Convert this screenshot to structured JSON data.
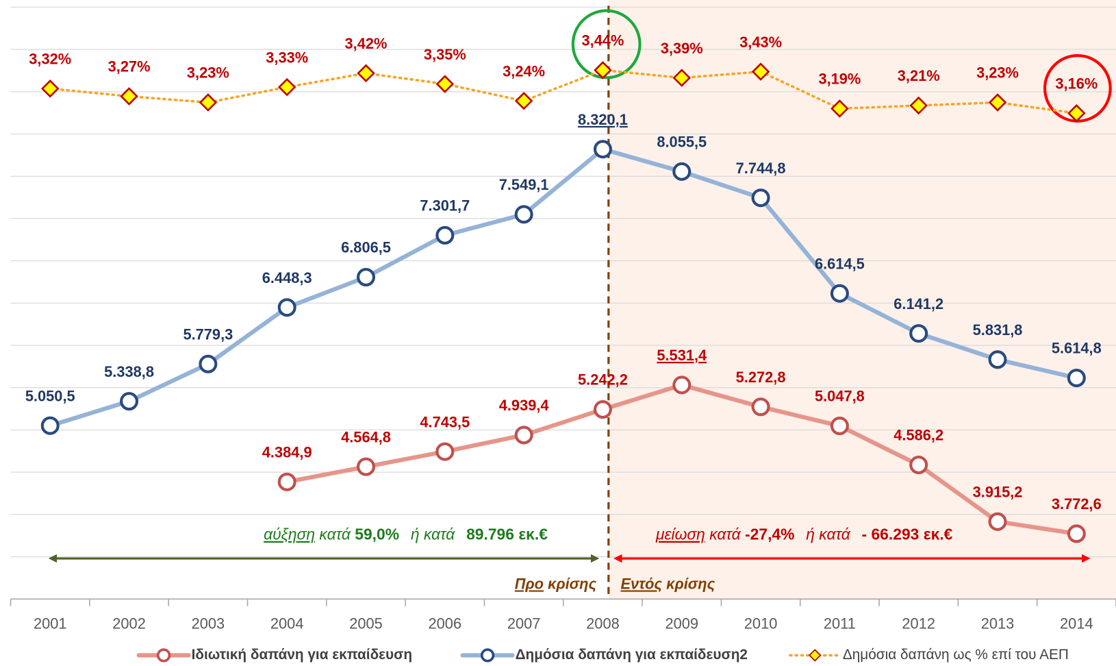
{
  "chart_data": {
    "type": "line",
    "categories": [
      "2001",
      "2002",
      "2003",
      "2004",
      "2005",
      "2006",
      "2007",
      "2008",
      "2009",
      "2010",
      "2011",
      "2012",
      "2013",
      "2014"
    ],
    "ylim": [
      3000,
      10000
    ],
    "yticks": [
      3000,
      3500,
      4000,
      4500,
      5000,
      5500,
      6000,
      6500,
      7000,
      7500,
      8000,
      8500,
      9000,
      9500,
      10000
    ],
    "y2lim": [
      0,
      3.85
    ],
    "grid": true,
    "series": [
      {
        "name": "Ιδιωτική δαπάνη για εκπαίδευση",
        "color": "#e6958a",
        "marker_color": "#c0504d",
        "label_color": "#c00000",
        "marker": "circle",
        "line_style": "solid",
        "values": [
          null,
          null,
          null,
          4384.9,
          4564.8,
          4743.5,
          4939.4,
          5242.2,
          5531.4,
          5272.8,
          5047.8,
          4586.2,
          3915.2,
          3772.6
        ],
        "value_labels": [
          null,
          null,
          null,
          "4.384,9",
          "4.564,8",
          "4.743,5",
          "4.939,4",
          "5.242,2",
          "5.531,4",
          "5.272,8",
          "5.047,8",
          "4.586,2",
          "3.915,2",
          "3.772,6"
        ]
      },
      {
        "name": "Δημόσια δαπάνη για εκπαίδευση2",
        "color": "#95b3d7",
        "marker_color": "#2a4a7f",
        "label_color": "#1f3864",
        "marker": "circle",
        "line_style": "solid",
        "values": [
          5050.5,
          5338.8,
          5779.3,
          6448.3,
          6806.5,
          7301.7,
          7549.1,
          8320.1,
          8055.5,
          7744.8,
          6614.5,
          6141.2,
          5831.8,
          5614.8
        ],
        "value_labels": [
          "5.050,5",
          "5.338,8",
          "5.779,3",
          "6.448,3",
          "6.806,5",
          "7.301,7",
          "7.549,1",
          "8.320,1",
          "8.055,5",
          "7.744,8",
          "6.614,5",
          "6.141,2",
          "5.831,8",
          "5.614,8"
        ]
      },
      {
        "name": "Δημόσια δαπάνη ως % επί του ΑΕΠ",
        "color": "#f5a623",
        "marker_color": "#c00000",
        "marker_fill": "#ffff00",
        "label_color": "#c00000",
        "marker": "diamond",
        "line_style": "dotted",
        "axis": "y2",
        "values": [
          3.32,
          3.27,
          3.23,
          3.33,
          3.42,
          3.35,
          3.24,
          3.44,
          3.39,
          3.43,
          3.19,
          3.21,
          3.23,
          3.16
        ],
        "value_labels": [
          "3,32%",
          "3,27%",
          "3,23%",
          "3,33%",
          "3,42%",
          "3,35%",
          "3,24%",
          "3,44%",
          "3,39%",
          "3,43%",
          "3,19%",
          "3,21%",
          "3,23%",
          "3,16%"
        ]
      }
    ],
    "annotations": {
      "increase": [
        "αύξηση",
        "κατά",
        "59,0%",
        "ή κατά",
        "89.796 εκ.€"
      ],
      "decrease": [
        "μείωση",
        "κατά",
        "-27,4%",
        "ή κατά",
        "- 66.293 εκ.€"
      ],
      "pre_crisis": [
        "Προ",
        "κρίσης"
      ],
      "in_crisis": [
        "Εντός",
        "κρίσης"
      ]
    }
  }
}
